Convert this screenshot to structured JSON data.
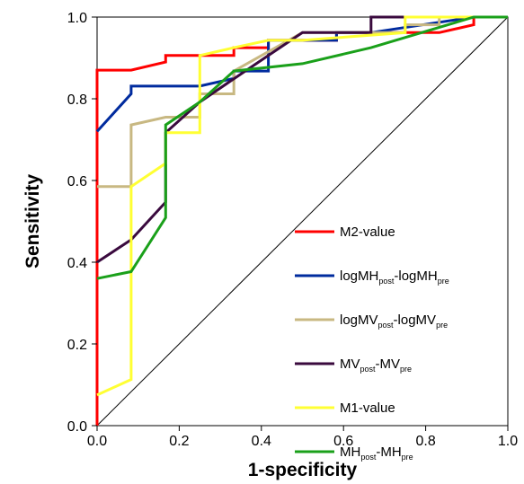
{
  "chart_data": {
    "type": "line",
    "xlabel": "1-specificity",
    "ylabel": "Sensitivity",
    "xlim": [
      0,
      1
    ],
    "ylim": [
      0,
      1
    ],
    "xticks": [
      "0.0",
      "0.2",
      "0.4",
      "0.6",
      "0.8",
      "1.0"
    ],
    "yticks": [
      "0.0",
      "0.2",
      "0.4",
      "0.6",
      "0.8",
      "1.0"
    ],
    "grid": false,
    "legend_placement": "lower-right",
    "reference_line": [
      [
        0,
        0
      ],
      [
        1,
        1
      ]
    ],
    "series": [
      {
        "name": "M2-value",
        "legend": {
          "base1": "M2-value",
          "sub1": "",
          "base2": "",
          "sub2": ""
        },
        "color": "#ff0000",
        "x": [
          0,
          0,
          0.083,
          0.083,
          0.167,
          0.167,
          0.333,
          0.333,
          0.417,
          0.417,
          0.583,
          0.583,
          0.833,
          0.917,
          0.917,
          1.0
        ],
        "y": [
          0,
          0.87,
          0.87,
          0.87,
          0.89,
          0.906,
          0.906,
          0.925,
          0.925,
          0.943,
          0.943,
          0.962,
          0.962,
          0.981,
          1.0,
          1.0
        ]
      },
      {
        "name": "logMHpost-logMHpre",
        "legend": {
          "base1": "logMH",
          "sub1": "post",
          "base2": "-logMH",
          "sub2": "pre"
        },
        "color": "#002b9e",
        "x": [
          0,
          0,
          0.083,
          0.083,
          0.25,
          0.333,
          0.333,
          0.417,
          0.417,
          0.583,
          0.583,
          0.667,
          0.917,
          1.0
        ],
        "y": [
          0.72,
          0.72,
          0.812,
          0.831,
          0.831,
          0.85,
          0.868,
          0.868,
          0.943,
          0.943,
          0.962,
          0.962,
          1.0,
          1.0
        ]
      },
      {
        "name": "logMVpost-logMVpre",
        "legend": {
          "base1": "logMV",
          "sub1": "post",
          "base2": "-logMV",
          "sub2": "pre"
        },
        "color": "#c8b882",
        "x": [
          0,
          0.083,
          0.083,
          0.167,
          0.25,
          0.25,
          0.333,
          0.333,
          0.5,
          0.75,
          0.75,
          0.833,
          0.833,
          1.0
        ],
        "y": [
          0.585,
          0.585,
          0.736,
          0.755,
          0.755,
          0.812,
          0.812,
          0.868,
          0.962,
          0.962,
          0.981,
          0.981,
          1.0,
          1.0
        ]
      },
      {
        "name": "MVpost-MVpre",
        "legend": {
          "base1": "MV",
          "sub1": "post",
          "base2": "-MV",
          "sub2": "pre"
        },
        "color": "#3a0a3e",
        "x": [
          0,
          0.083,
          0.167,
          0.167,
          0.25,
          0.333,
          0.417,
          0.5,
          0.583,
          0.667,
          0.667,
          0.75,
          1.0
        ],
        "y": [
          0.4,
          0.455,
          0.547,
          0.717,
          0.792,
          0.849,
          0.906,
          0.962,
          0.962,
          0.962,
          1.0,
          1.0,
          1.0
        ]
      },
      {
        "name": "M1-value",
        "legend": {
          "base1": "M1-value",
          "sub1": "",
          "base2": "",
          "sub2": ""
        },
        "color": "#ffff33",
        "x": [
          0,
          0.083,
          0.083,
          0.167,
          0.167,
          0.25,
          0.25,
          0.333,
          0.417,
          0.5,
          0.75,
          0.75,
          1.0
        ],
        "y": [
          0.075,
          0.113,
          0.585,
          0.642,
          0.717,
          0.717,
          0.906,
          0.925,
          0.943,
          0.943,
          0.962,
          1.0,
          1.0
        ]
      },
      {
        "name": "MHpost-MHpre",
        "legend": {
          "base1": "MH",
          "sub1": "post",
          "base2": "-MH",
          "sub2": "pre"
        },
        "color": "#1aa01a",
        "x": [
          0,
          0.083,
          0.083,
          0.167,
          0.167,
          0.25,
          0.333,
          0.5,
          0.667,
          0.917,
          1.0
        ],
        "y": [
          0.36,
          0.377,
          0.377,
          0.509,
          0.736,
          0.792,
          0.868,
          0.886,
          0.925,
          1.0,
          1.0
        ]
      }
    ]
  }
}
